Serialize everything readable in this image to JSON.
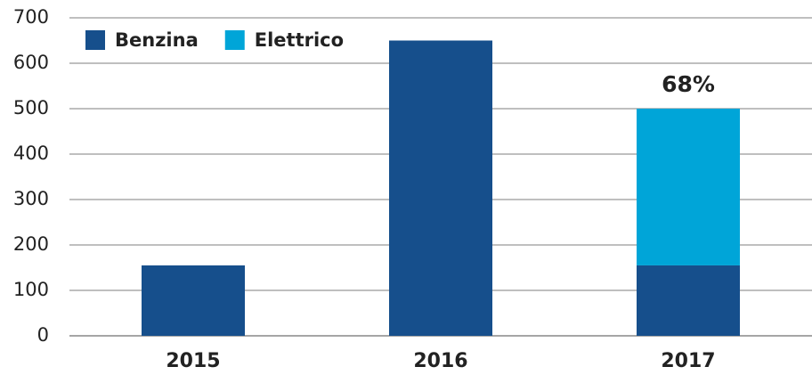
{
  "chart_data": {
    "type": "stacked_bar",
    "categories": [
      "2015",
      "2016",
      "2017"
    ],
    "series": [
      {
        "name": "Benzina",
        "color": "#164f8c",
        "values": [
          155,
          650,
          155
        ]
      },
      {
        "name": "Elettrico",
        "color": "#00a5d8",
        "values": [
          0,
          0,
          345
        ]
      }
    ],
    "ylim": [
      0,
      700
    ],
    "yticks": [
      0,
      100,
      200,
      300,
      400,
      500,
      600,
      700
    ],
    "grid": true,
    "legend": "top-left",
    "annotation": "68%"
  }
}
